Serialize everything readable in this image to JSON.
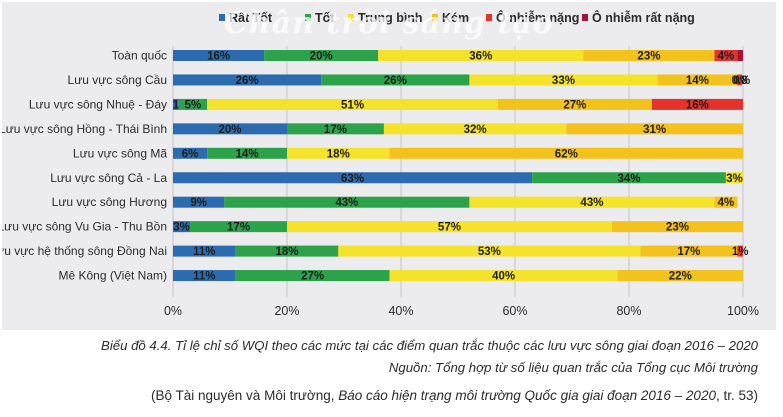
{
  "watermark": "Chân trời sáng tạo",
  "chart_data": {
    "type": "bar",
    "orientation": "horizontal",
    "stacked": true,
    "categories": [
      "Toàn quốc",
      "Lưu vực sông Cầu",
      "Lưu vực sông Nhuệ - Đáy",
      "Lưu vực sông Hồng - Thái Bình",
      "Lưu vực sông Mã",
      "Lưu vực sông Cả - La",
      "Lưu vực sông Hương",
      "Lưu vực sông Vu Gia - Thu Bồn",
      "Lưu vực hệ thống sông Đồng Nai",
      "Mê Kông (Việt Nam)"
    ],
    "series": [
      {
        "name": "Rất Tốt",
        "color": "#2c6bb0",
        "values": [
          16,
          26,
          1,
          20,
          6,
          63,
          9,
          3,
          11,
          11
        ],
        "labels": [
          "16%",
          "26%",
          "1",
          "20%",
          "6%",
          "63%",
          "9%",
          "3%",
          "11%",
          "11%"
        ]
      },
      {
        "name": "Tốt",
        "color": "#2ca24a",
        "values": [
          20,
          26,
          5,
          17,
          14,
          34,
          43,
          17,
          18,
          27
        ],
        "labels": [
          "20%",
          "26%",
          "5%",
          "17%",
          "14%",
          "34%",
          "43%",
          "17%",
          "18%",
          "27%"
        ]
      },
      {
        "name": "Trung bình",
        "color": "#f5e22a",
        "values": [
          36,
          33,
          51,
          32,
          18,
          3,
          43,
          57,
          53,
          40
        ],
        "labels": [
          "36%",
          "33%",
          "51%",
          "32%",
          "18%",
          "3%",
          "43%",
          "57%",
          "53%",
          "40%"
        ]
      },
      {
        "name": "Kém",
        "color": "#f3c21d",
        "values": [
          23,
          14,
          27,
          31,
          62,
          0,
          4,
          23,
          17,
          22
        ],
        "labels": [
          "23%",
          "14%",
          "27%",
          "31%",
          "62%",
          "",
          "4%",
          "23%",
          "17%",
          "22%"
        ]
      },
      {
        "name": "Ô nhiễm nặng",
        "color": "#e5322d",
        "values": [
          4,
          0.8,
          16,
          0,
          0,
          0,
          0,
          0,
          1,
          0
        ],
        "labels": [
          "4%",
          "0.8",
          "16%",
          "",
          "",
          "",
          "",
          "",
          "1%",
          ""
        ]
      },
      {
        "name": "Ô nhiễm rất nặng",
        "color": "#a3123f",
        "values": [
          1,
          0,
          0,
          0,
          0,
          0,
          0,
          0,
          0,
          0
        ],
        "labels": [
          "",
          "0%",
          "",
          "",
          "",
          "",
          "",
          "",
          "",
          ""
        ]
      }
    ],
    "xlim": [
      0,
      100
    ],
    "x_ticks": [
      "0%",
      "20%",
      "40%",
      "60%",
      "80%",
      "100%"
    ],
    "grid": true,
    "legend_position": "top"
  },
  "caption": {
    "line1": "Biểu đồ 4.4. Tỉ lệ chỉ số WQI theo các mức tại các điểm quan trắc thuộc các lưu vực sông giai đoạn 2016 – 2020",
    "line2": "Nguồn: Tổng hợp từ số liệu quan trắc của Tổng cục Môi trường",
    "line3_before": "(Bộ Tài nguyên và Môi trường, ",
    "line3_italic": "Báo cáo hiện trạng môi trường Quốc gia giai đoạn 2016 – 2020",
    "line3_after": ", tr. 53)"
  }
}
